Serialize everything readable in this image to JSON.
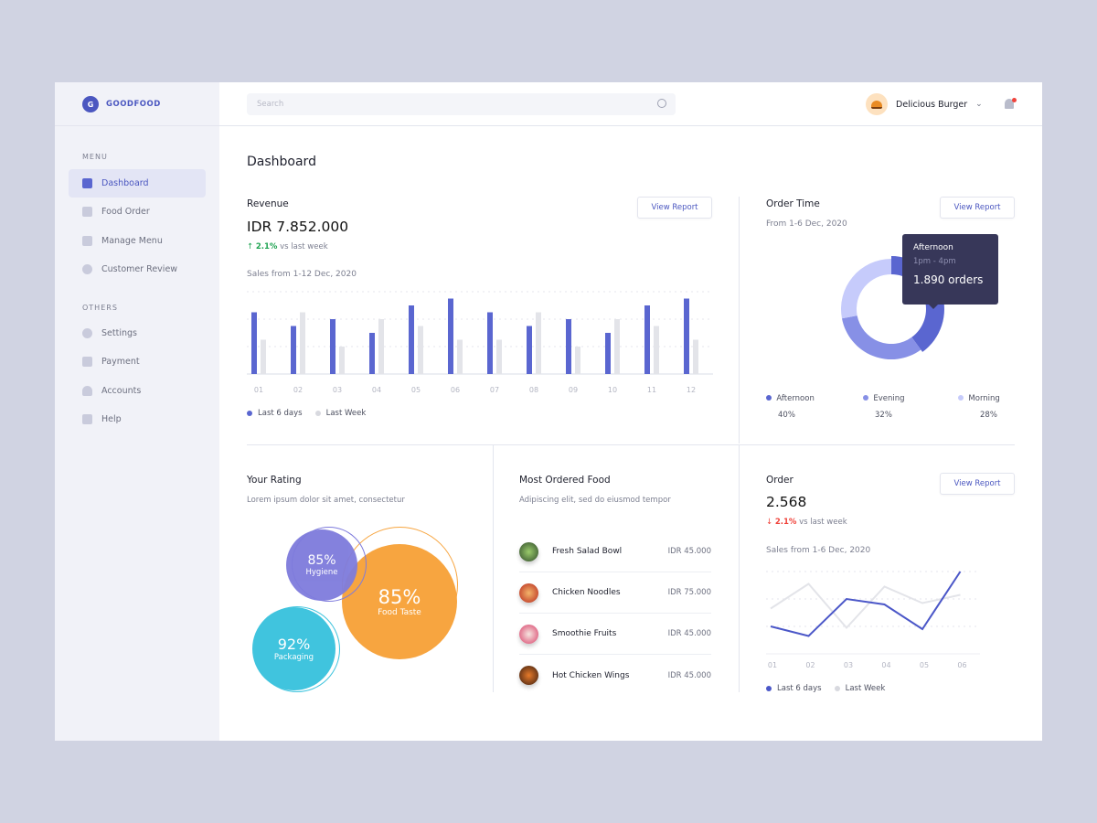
{
  "brand": {
    "initial": "G",
    "name": "GOODFOOD"
  },
  "sidebar": {
    "menu_label": "MENU",
    "others_label": "OTHERS",
    "menu": [
      {
        "label": "Dashboard",
        "icon": "chart-icon",
        "active": true
      },
      {
        "label": "Food Order",
        "icon": "cart-icon"
      },
      {
        "label": "Manage Menu",
        "icon": "menu-icon"
      },
      {
        "label": "Customer Review",
        "icon": "chat-icon"
      }
    ],
    "others": [
      {
        "label": "Settings",
        "icon": "gear-icon"
      },
      {
        "label": "Payment",
        "icon": "wallet-icon"
      },
      {
        "label": "Accounts",
        "icon": "user-icon"
      },
      {
        "label": "Help",
        "icon": "info-icon"
      }
    ]
  },
  "header": {
    "search_placeholder": "Search",
    "user": "Delicious Burger"
  },
  "page_title": "Dashboard",
  "revenue": {
    "title": "Revenue",
    "value": "IDR 7.852.000",
    "change": "2.1%",
    "change_text": "vs last week",
    "direction": "up",
    "button": "View Report",
    "range": "Sales from 1-12 Dec, 2020"
  },
  "order_time": {
    "title": "Order Time",
    "range": "From 1-6 Dec, 2020",
    "button": "View Report",
    "tooltip": {
      "label": "Afternoon",
      "time": "1pm - 4pm",
      "orders": "1.890 orders"
    },
    "slices": [
      {
        "name": "Afternoon",
        "pct": "40%",
        "value": 40,
        "color": "#5a66d0"
      },
      {
        "name": "Evening",
        "pct": "32%",
        "value": 32,
        "color": "#8790e6"
      },
      {
        "name": "Morning",
        "pct": "28%",
        "value": 28,
        "color": "#c6cbfb"
      }
    ]
  },
  "rating": {
    "title": "Your Rating",
    "subtitle": "Lorem ipsum dolor sit amet, consectetur",
    "items": [
      {
        "pct": "85%",
        "label": "Hygiene",
        "color": "#7e7bdc"
      },
      {
        "pct": "85%",
        "label": "Food Taste",
        "color": "#f7a540"
      },
      {
        "pct": "92%",
        "label": "Packaging",
        "color": "#40c4de"
      }
    ]
  },
  "most_ordered": {
    "title": "Most Ordered Food",
    "subtitle": "Adipiscing elit, sed do eiusmod tempor",
    "items": [
      {
        "name": "Fresh Salad Bowl",
        "price": "IDR 45.000"
      },
      {
        "name": "Chicken Noodles",
        "price": "IDR 75.000"
      },
      {
        "name": "Smoothie Fruits",
        "price": "IDR 45.000"
      },
      {
        "name": "Hot Chicken Wings",
        "price": "IDR 45.000"
      }
    ]
  },
  "order": {
    "title": "Order",
    "value": "2.568",
    "change": "2.1%",
    "change_text": "vs last week",
    "direction": "down",
    "button": "View Report",
    "range": "Sales from 1-6 Dec, 2020"
  },
  "chart_data": [
    {
      "type": "bar",
      "categories": [
        "01",
        "02",
        "03",
        "04",
        "05",
        "06",
        "07",
        "08",
        "09",
        "10",
        "11",
        "12"
      ],
      "series": [
        {
          "name": "Last 6 days",
          "color": "#5a66d0",
          "values": [
            2.25,
            1.75,
            2,
            1.5,
            2.5,
            2.75,
            2.25,
            1.75,
            2,
            1.5,
            2.5,
            2.75
          ]
        },
        {
          "name": "Last Week",
          "color": "#e3e4e9",
          "values": [
            1.25,
            2.25,
            1,
            2,
            1.75,
            1.25,
            1.25,
            2.25,
            1,
            2,
            1.75,
            1.25
          ]
        }
      ],
      "ylim": [
        0,
        3
      ],
      "grid": true,
      "legend": "bottom-left"
    },
    {
      "type": "pie",
      "labels": [
        "Afternoon",
        "Evening",
        "Morning"
      ],
      "values": [
        40,
        32,
        28
      ],
      "legend": "bottom"
    },
    {
      "type": "line",
      "categories": [
        "01",
        "02",
        "03",
        "04",
        "05",
        "06"
      ],
      "series": [
        {
          "name": "Last 6 days",
          "color": "#4b57c8",
          "values": [
            1,
            0.65,
            2,
            1.8,
            0.9,
            3
          ]
        },
        {
          "name": "Last Week",
          "color": "#e3e4e9",
          "values": [
            1.65,
            2.55,
            0.95,
            2.45,
            1.85,
            2.15
          ]
        }
      ],
      "ylim": [
        0,
        3
      ],
      "grid": true,
      "legend": "bottom-left"
    }
  ]
}
